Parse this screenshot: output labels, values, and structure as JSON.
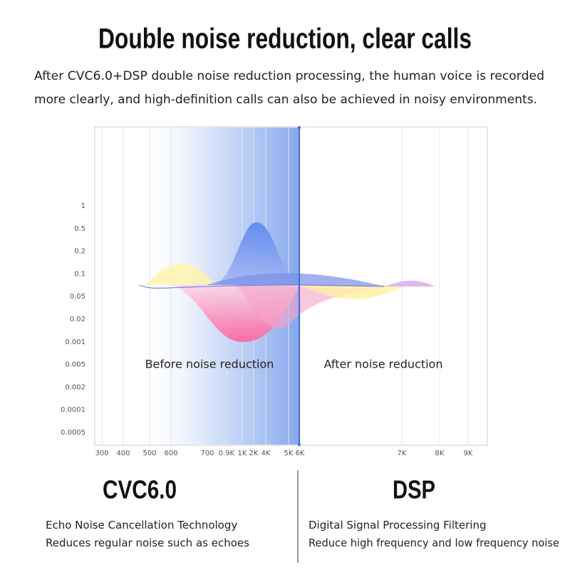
{
  "header": {
    "title": "Double noise reduction, clear calls",
    "description": [
      "After CVC6.0+DSP double noise reduction processing, the human voice is recorded",
      "more clearly, and high-definition calls can also be achieved in noisy environments."
    ]
  },
  "graph": {
    "y_labels": [
      "1",
      "0.5",
      "0.2",
      "0.1",
      "0.05",
      "0.02",
      "0.001",
      "0.005",
      "0.002",
      "0.0001",
      "0.0005"
    ],
    "x_labels": [
      "300",
      "400",
      "500",
      "600",
      "700",
      "0.9K",
      "1K",
      "2K",
      "4K",
      "5K",
      "6K",
      "7K",
      "8K",
      "9K"
    ],
    "before_label": "Before noise reduction",
    "after_label": "After noise reduction"
  },
  "features": [
    {
      "name": "CVC6.0",
      "lines": [
        "Echo Noise Cancellation Technology",
        "Reduces regular noise such as echoes"
      ]
    },
    {
      "name": "DSP",
      "lines": [
        "Digital Signal Processing Filtering",
        "Reduce high frequency and low frequency noise"
      ]
    }
  ]
}
